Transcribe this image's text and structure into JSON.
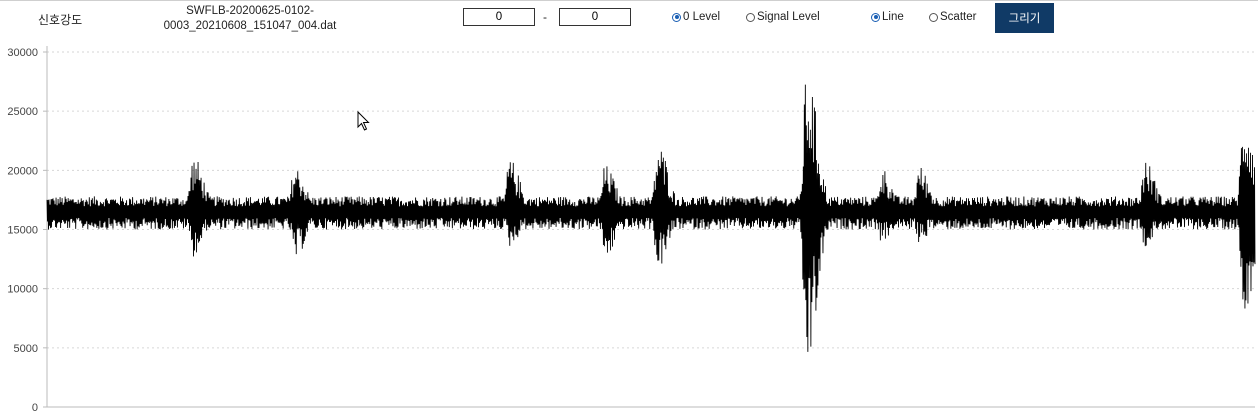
{
  "toolbar": {
    "signal_label": "신호강도",
    "file_line1": "SWFLB-20200625-0102-",
    "file_line2": "0003_20210608_151047_004.dat",
    "range_from": "0",
    "range_to": "0",
    "range_separator": "-",
    "level_options": [
      {
        "label": "0 Level",
        "selected": true
      },
      {
        "label": "Signal Level",
        "selected": false
      }
    ],
    "style_options": [
      {
        "label": "Line",
        "selected": true
      },
      {
        "label": "Scatter",
        "selected": false
      }
    ],
    "draw_button": "그리기",
    "accent_color": "#103a66"
  },
  "chart_data": {
    "type": "line",
    "series_color": "#000000",
    "ylim": [
      0,
      30000
    ],
    "yticks": [
      "0",
      "5000",
      "10000",
      "15000",
      "20000",
      "25000",
      "30000"
    ],
    "ytick_values": [
      0,
      5000,
      10000,
      15000,
      20000,
      25000,
      30000
    ],
    "grid": "horizontal dotted",
    "baseline": 16500,
    "noise_band": [
      15000,
      17800
    ],
    "bursts": [
      {
        "x": 0.121,
        "max": 21300,
        "min": 12700
      },
      {
        "x": 0.205,
        "max": 20500,
        "min": 12300
      },
      {
        "x": 0.383,
        "max": 21000,
        "min": 13500
      },
      {
        "x": 0.462,
        "max": 20500,
        "min": 12400
      },
      {
        "x": 0.506,
        "max": 22300,
        "min": 11600
      },
      {
        "x": 0.629,
        "max": 28700,
        "min": 3000
      },
      {
        "x": 0.691,
        "max": 20300,
        "min": 13800
      },
      {
        "x": 0.722,
        "max": 20400,
        "min": 13800
      },
      {
        "x": 0.909,
        "max": 20900,
        "min": 13500
      },
      {
        "x": 0.991,
        "max": 25300,
        "min": 8100
      }
    ]
  }
}
